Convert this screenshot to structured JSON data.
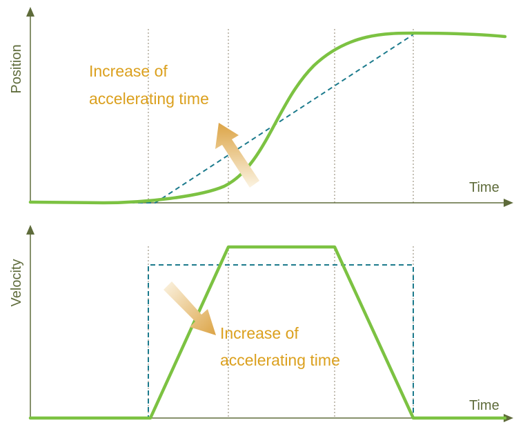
{
  "top_panel": {
    "ylabel": "Position",
    "xlabel": "Time",
    "annotation": [
      "Increase of",
      "accelerating time"
    ]
  },
  "bottom_panel": {
    "ylabel": "Velocity",
    "xlabel": "Time",
    "annotation": [
      "Increase of",
      "accelerating time"
    ]
  },
  "colors": {
    "axis": "#5e6b3a",
    "solid_curve": "#7cc242",
    "dashed_curve": "#1b7a8c",
    "guide_line": "#8a7f6a",
    "annotation_text": "#dba01e",
    "arrow_gradient_start": "#fbf3e2",
    "arrow_gradient_end": "#dca446",
    "label_text": "#5e6b3a"
  }
}
